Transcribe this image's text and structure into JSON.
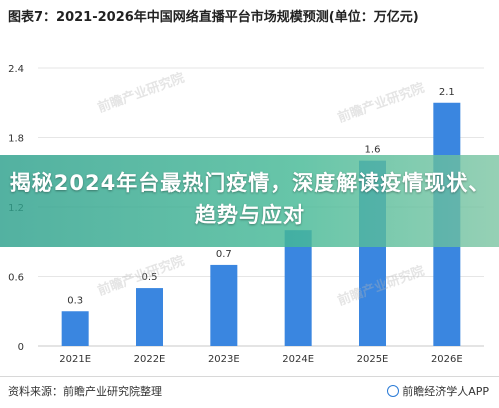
{
  "header": {
    "title": "图表7：2021-2026年中国网络直播平台市场规模预测(单位：万亿元)"
  },
  "banner": {
    "text": "揭秘2024年台最热门疫情，深度解读疫情现状、趋势与应对"
  },
  "footer": {
    "source": "资料来源：前瞻产业研究院整理",
    "brand": "前瞻经济学人APP"
  },
  "watermark": {
    "text": "前瞻产业研究院"
  },
  "colors": {
    "bar": "#3a86e0",
    "grid": "#e6e6e6",
    "axis": "#c9c9c9",
    "tick_text": "#333333"
  },
  "chart_data": {
    "type": "bar",
    "title": "图表7：2021-2026年中国网络直播平台市场规模预测(单位：万亿元)",
    "xlabel": "",
    "ylabel": "",
    "categories": [
      "2021E",
      "2022E",
      "2023E",
      "2024E",
      "2025E",
      "2026E"
    ],
    "values": [
      0.3,
      0.5,
      0.7,
      1.0,
      1.6,
      2.1
    ],
    "data_labels": [
      "0.3",
      "0.5",
      "0.7",
      "",
      "1.6",
      "2.1"
    ],
    "yticks": [
      "0",
      "0.6",
      "1.2",
      "1.8",
      "2.4"
    ],
    "ytick_values": [
      0,
      0.6,
      1.2,
      1.8,
      2.4
    ],
    "ylim": [
      0,
      2.4
    ],
    "grid": true,
    "legend": "none"
  }
}
